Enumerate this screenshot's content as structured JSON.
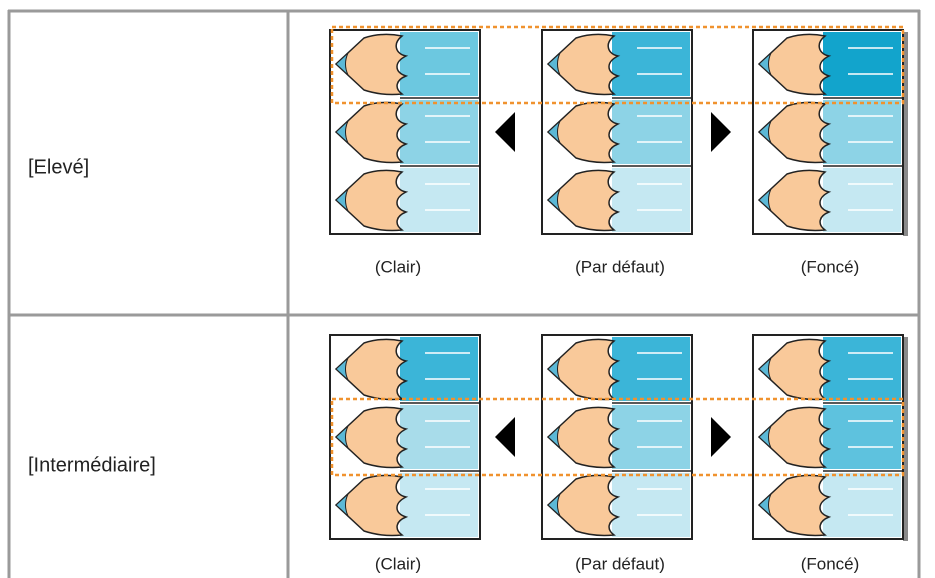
{
  "rows": [
    {
      "label": "[Elevé]",
      "captions": [
        "(Clair)",
        "(Par défaut)",
        "(Foncé)"
      ]
    },
    {
      "label": "[Intermédiaire]",
      "captions": [
        "(Clair)",
        "(Par défaut)",
        "(Foncé)"
      ]
    }
  ]
}
